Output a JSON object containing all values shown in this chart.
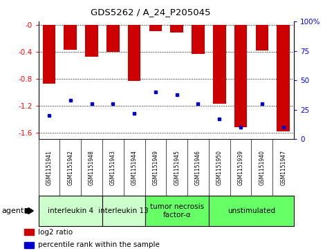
{
  "title": "GDS5262 / A_24_P205045",
  "samples": [
    "GSM1151941",
    "GSM1151942",
    "GSM1151948",
    "GSM1151943",
    "GSM1151944",
    "GSM1151949",
    "GSM1151945",
    "GSM1151946",
    "GSM1151950",
    "GSM1151939",
    "GSM1151940",
    "GSM1151947"
  ],
  "log2_ratio": [
    -0.87,
    -0.37,
    -0.47,
    -0.4,
    -0.83,
    -0.1,
    -0.12,
    -0.43,
    -1.17,
    -1.52,
    -0.38,
    -1.58
  ],
  "percentile_rank": [
    20,
    33,
    30,
    30,
    22,
    40,
    38,
    30,
    17,
    10,
    30,
    10
  ],
  "ylim_left": [
    -1.7,
    0.05
  ],
  "ylim_right": [
    0,
    100
  ],
  "yticks_left": [
    0.0,
    -0.4,
    -0.8,
    -1.2,
    -1.6
  ],
  "yticks_right": [
    0,
    25,
    50,
    75,
    100
  ],
  "ytick_labels_left": [
    "-0",
    "-0.4",
    "-0.8",
    "-1.2",
    "-1.6"
  ],
  "ytick_labels_right": [
    "0",
    "25",
    "50",
    "75",
    "100%"
  ],
  "group_spans": [
    {
      "start": 0,
      "end": 2,
      "label": "interleukin 4",
      "color": "#ccffcc"
    },
    {
      "start": 3,
      "end": 4,
      "label": "interleukin 13",
      "color": "#ccffcc"
    },
    {
      "start": 5,
      "end": 7,
      "label": "tumor necrosis\nfactor-α",
      "color": "#66ff66"
    },
    {
      "start": 8,
      "end": 11,
      "label": "unstimulated",
      "color": "#66ff66"
    }
  ],
  "bar_color": "#cc0000",
  "dot_color": "#0000cc",
  "tick_bg_color": "#c8c8c8",
  "plot_bg_color": "#ffffff",
  "legend_bar_label": "log2 ratio",
  "legend_dot_label": "percentile rank within the sample"
}
